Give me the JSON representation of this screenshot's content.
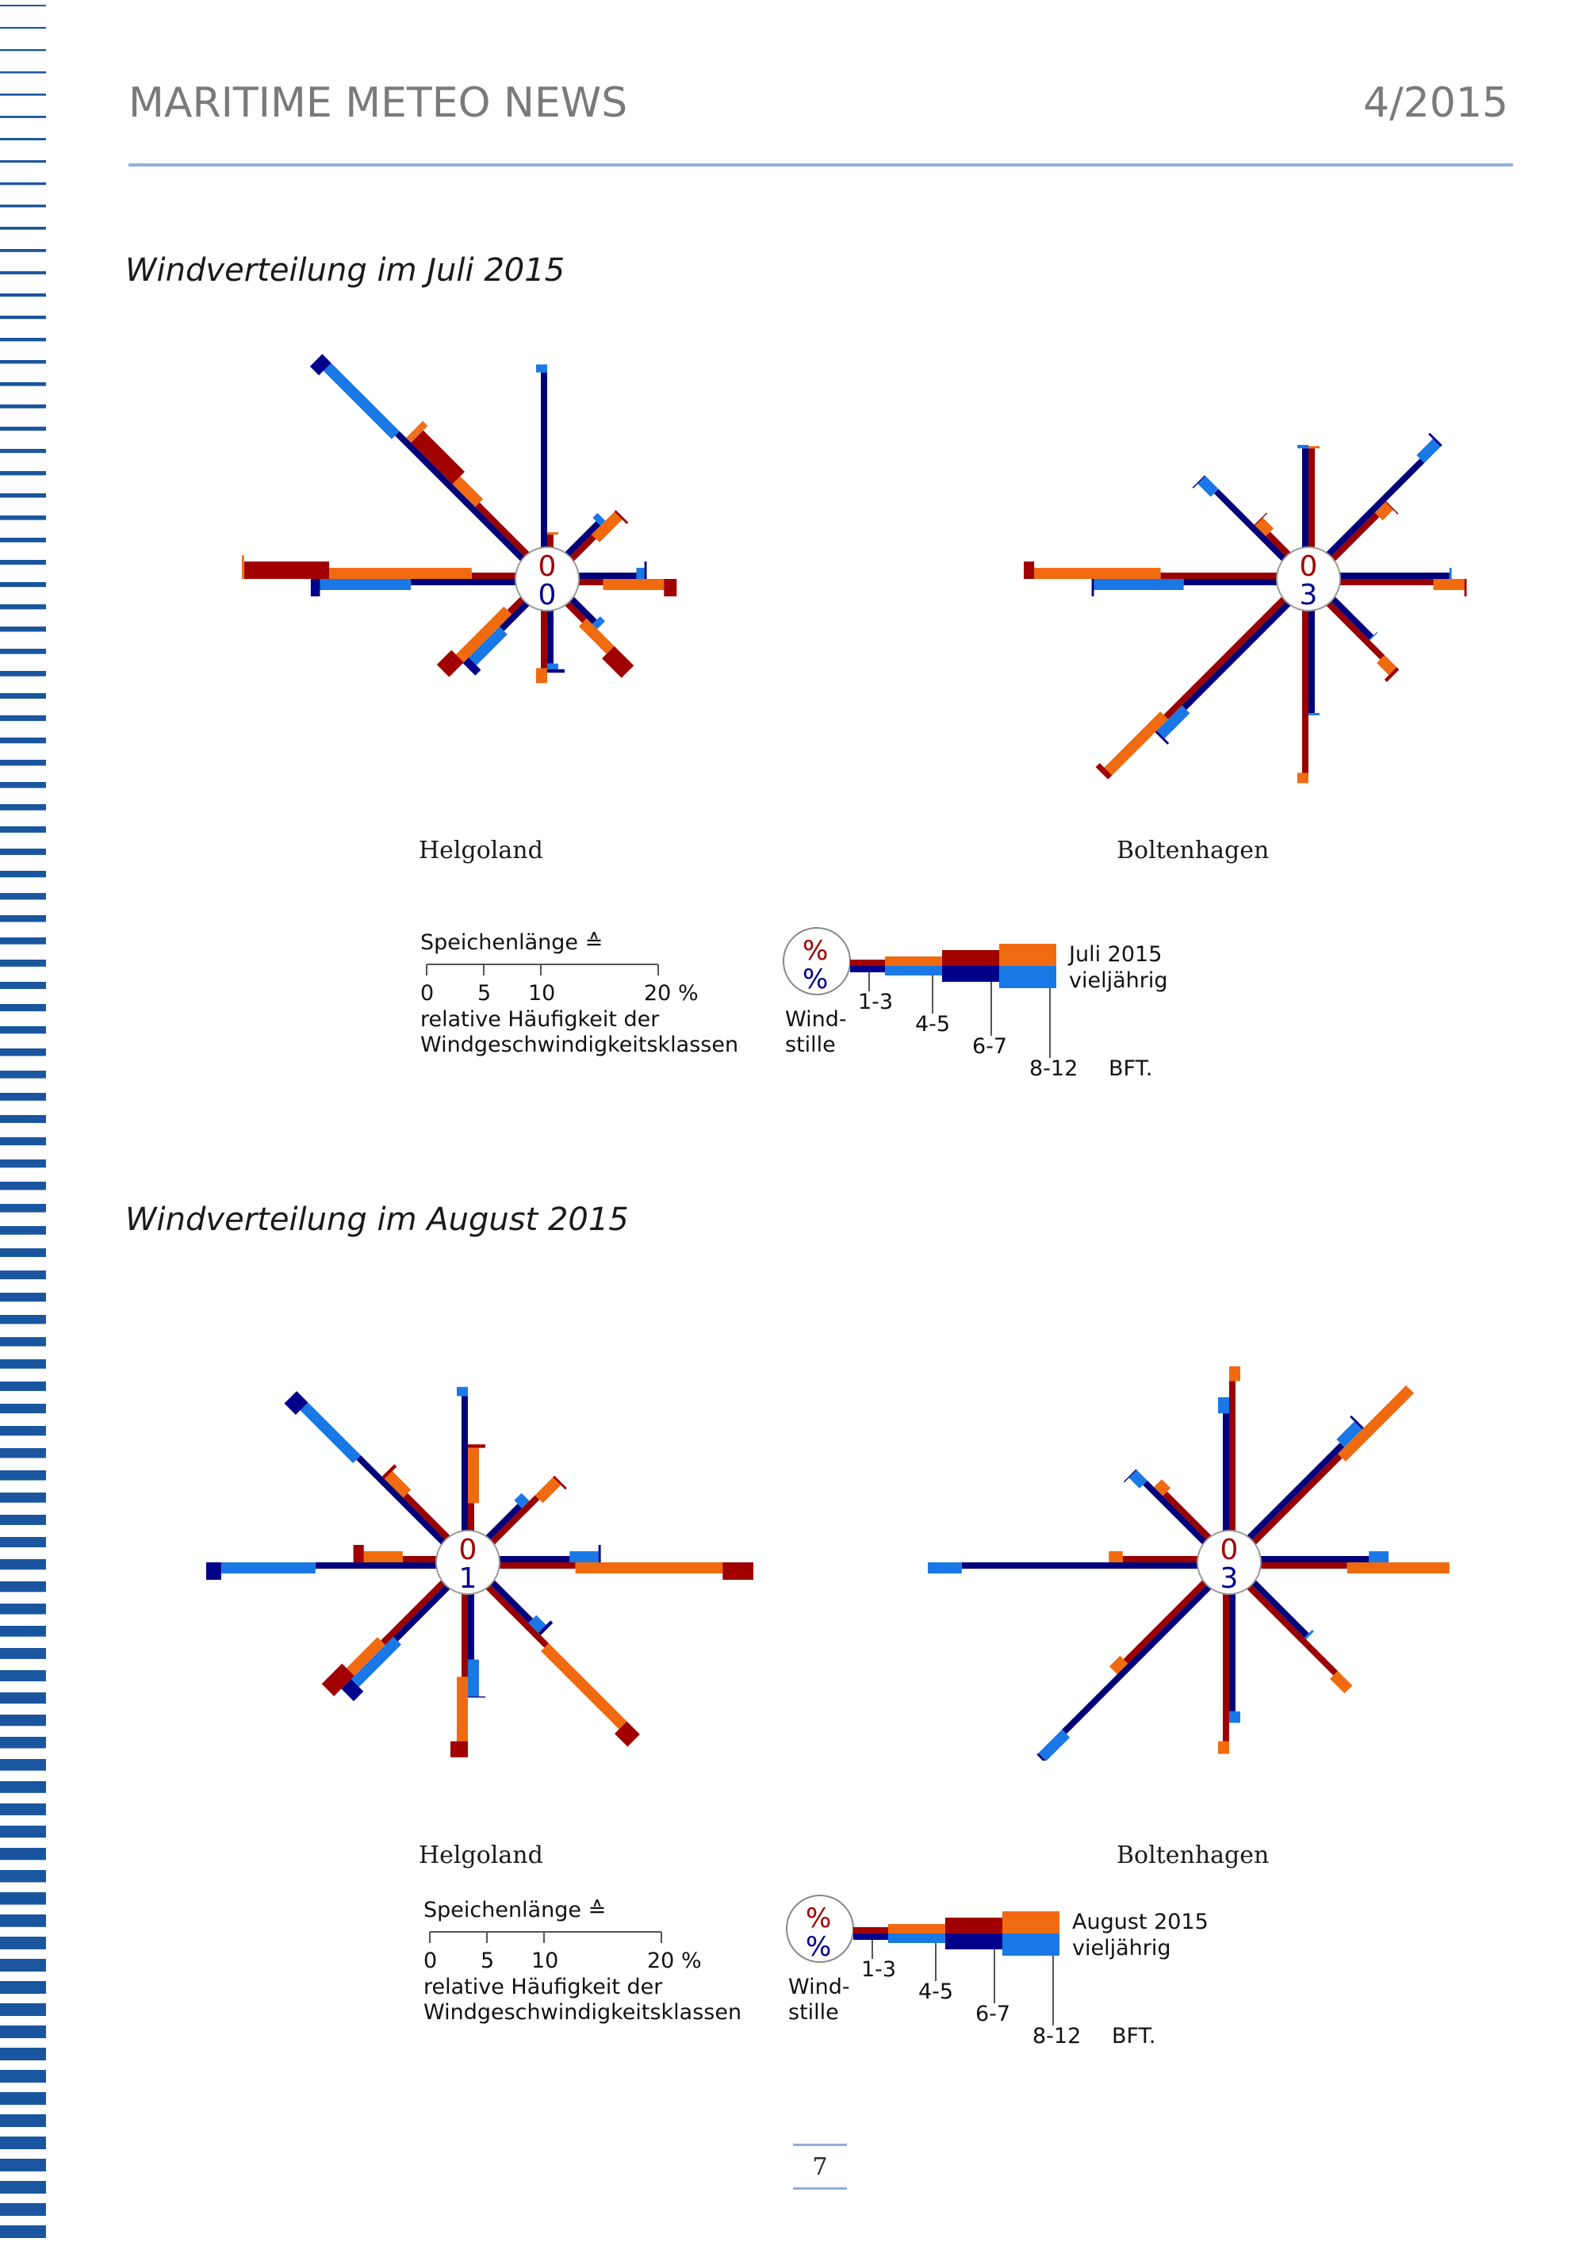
{
  "header": {
    "title": "MARITIME METEO NEWS",
    "issue": "4/2015"
  },
  "colors": {
    "c13": "#990000",
    "c45": "#f06a10",
    "c67": "#a00000",
    "c812": "#f07020",
    "l13": "#00007a",
    "l45": "#1a78e6",
    "l67": "#00008a",
    "l812": "#1a78e6",
    "calm_cur": "#a00000",
    "calm_long": "#00008a"
  },
  "sections": [
    {
      "title": "Windverteilung im Juli 2015",
      "legend": {
        "speichen": "Speichenlänge ≙",
        "ticks": [
          "0",
          "5",
          "10",
          "20 %"
        ],
        "rel1": "relative Häufigkeit der",
        "rel2": "Windgeschwindigkeitsklassen",
        "calm_sym": "%",
        "wind1": "Wind-",
        "wind2": "stille",
        "cls13": "1-3",
        "cls45": "4-5",
        "cls67": "6-7",
        "cls812": "8-12",
        "bft": "BFT.",
        "current": "Juli 2015",
        "longterm": "vieljährig"
      }
    },
    {
      "title": "Windverteilung im August 2015",
      "legend": {
        "speichen": "Speichenlänge ≙",
        "ticks": [
          "0",
          "5",
          "10",
          "20 %"
        ],
        "rel1": "relative Häufigkeit der",
        "rel2": "Windgeschwindigkeitsklassen",
        "calm_sym": "%",
        "wind1": "Wind-",
        "wind2": "stille",
        "cls13": "1-3",
        "cls45": "4-5",
        "cls67": "6-7",
        "cls812": "8-12",
        "bft": "BFT.",
        "current": "August 2015",
        "longterm": "vieljährig"
      }
    }
  ],
  "chart_data": [
    {
      "type": "windrose",
      "period": "Juli 2015",
      "station": "Helgoland",
      "unit": "%",
      "directions": [
        "N",
        "NE",
        "E",
        "SE",
        "S",
        "SW",
        "W",
        "NW"
      ],
      "calm_current": "0",
      "calm_longterm": "0",
      "current": [
        [
          1.1,
          0.2,
          0,
          0
        ],
        [
          2.7,
          2.8,
          0.2,
          0
        ],
        [
          2.1,
          5.3,
          1.1,
          0
        ],
        [
          2.1,
          3.4,
          2.4,
          0
        ],
        [
          5.0,
          1.3,
          0,
          0
        ],
        [
          1.6,
          5.9,
          1.8,
          0
        ],
        [
          3.8,
          12.4,
          7.4,
          0.2
        ],
        [
          6.1,
          2.8,
          5.1,
          0.6
        ]
      ],
      "longterm": [
        [
          15.2,
          0.7,
          0,
          0
        ],
        [
          3.8,
          0.6,
          0,
          0
        ],
        [
          5.0,
          0.7,
          0.2,
          0
        ],
        [
          2.8,
          0.6,
          0,
          0
        ],
        [
          4.6,
          0.5,
          0.3,
          0
        ],
        [
          3.1,
          3.8,
          0.7,
          0
        ],
        [
          9.1,
          7.9,
          0.8,
          0
        ],
        [
          15.4,
          8.4,
          1.1,
          0
        ]
      ]
    },
    {
      "type": "windrose",
      "period": "Juli 2015",
      "station": "Boltenhagen",
      "unit": "%",
      "directions": [
        "N",
        "NE",
        "E",
        "SE",
        "S",
        "SW",
        "W",
        "NW"
      ],
      "calm_current": "0",
      "calm_longterm": "3",
      "current": [
        [
          8.6,
          0.2,
          0,
          0
        ],
        [
          5.4,
          1.3,
          0.1,
          0
        ],
        [
          8.1,
          2.7,
          0.2,
          0
        ],
        [
          6.6,
          1.5,
          0.3,
          0
        ],
        [
          14.1,
          0.9,
          0,
          0
        ],
        [
          14.5,
          6.9,
          0.5,
          0
        ],
        [
          10.1,
          11.0,
          0.9,
          0
        ],
        [
          2.5,
          1.3,
          0.1,
          0
        ]
      ],
      "longterm": [
        [
          8.6,
          0.3,
          0,
          0
        ],
        [
          11.5,
          2.0,
          0.2,
          0
        ],
        [
          9.5,
          0.2,
          0,
          0
        ],
        [
          4.7,
          0.1,
          0,
          0
        ],
        [
          8.9,
          0.2,
          0,
          0
        ],
        [
          12.8,
          3.1,
          0.2,
          0
        ],
        [
          8.1,
          7.8,
          0.2,
          0
        ],
        [
          8.3,
          1.6,
          0.1,
          0
        ]
      ]
    },
    {
      "type": "windrose",
      "period": "August 2015",
      "station": "Helgoland",
      "unit": "%",
      "directions": [
        "N",
        "NE",
        "E",
        "SE",
        "S",
        "SW",
        "W",
        "NW"
      ],
      "calm_current": "0",
      "calm_longterm": "1",
      "current": [
        [
          2.4,
          4.8,
          0.3,
          0
        ],
        [
          5.5,
          2.2,
          0.2,
          0
        ],
        [
          6.6,
          12.8,
          3.6,
          0
        ],
        [
          7.2,
          9.6,
          1.6,
          0
        ],
        [
          7.2,
          5.6,
          1.4,
          0
        ],
        [
          7.4,
          3.8,
          2.5,
          0
        ],
        [
          2.9,
          3.4,
          0.9,
          0
        ],
        [
          5.2,
          2.3,
          0.3,
          0
        ]
      ],
      "longterm": [
        [
          11.7,
          0.8,
          0,
          0
        ],
        [
          3.9,
          0.9,
          0,
          0
        ],
        [
          6.1,
          2.5,
          0.2,
          0
        ],
        [
          4.7,
          1.2,
          0.3,
          0
        ],
        [
          5.7,
          3.2,
          0.1,
          0
        ],
        [
          6.4,
          5.2,
          1.2,
          0
        ],
        [
          10.5,
          8.2,
          1.3,
          0
        ],
        [
          10.4,
          6.5,
          1.4,
          0
        ]
      ]
    },
    {
      "type": "windrose",
      "period": "August 2015",
      "station": "Boltenhagen",
      "unit": "%",
      "directions": [
        "N",
        "NE",
        "E",
        "SE",
        "S",
        "SW",
        "W",
        "NW"
      ],
      "calm_current": "0",
      "calm_longterm": "3",
      "current": [
        [
          13.0,
          1.3,
          0,
          0
        ],
        [
          10.6,
          8.4,
          0,
          0
        ],
        [
          7.5,
          8.9,
          0,
          0
        ],
        [
          10.6,
          1.8,
          0,
          0
        ],
        [
          12.8,
          1.1,
          0,
          0
        ],
        [
          9.7,
          1.3,
          0,
          0
        ],
        [
          6.5,
          1.2,
          0,
          0
        ],
        [
          5.4,
          1.1,
          0,
          0
        ]
      ],
      "longterm": [
        [
          10.2,
          1.4,
          0,
          0
        ],
        [
          11.4,
          2.2,
          0.2,
          0
        ],
        [
          9.4,
          1.7,
          0,
          0
        ],
        [
          6.5,
          0.2,
          0,
          0
        ],
        [
          10.2,
          1.0,
          0,
          0
        ],
        [
          17.8,
          2.9,
          0.2,
          0
        ],
        [
          20.5,
          5.3,
          0.2,
          0
        ],
        [
          7.3,
          1.3,
          0.1,
          0
        ]
      ]
    }
  ],
  "stations": [
    "Helgoland",
    "Boltenhagen"
  ],
  "page_number": "7"
}
